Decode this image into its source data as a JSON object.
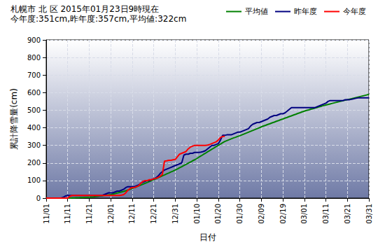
{
  "chart_data": {
    "type": "line",
    "title": "札幌市 北 区 2015年01月23日9時現在",
    "subtitle": "今年度:351cm,昨年度:357cm,平均値:322cm",
    "x_label": "日付",
    "y_label": "累計降雪量(cm)",
    "categories": [
      "11/01",
      null,
      null,
      null,
      null,
      null,
      null,
      null,
      null,
      null,
      "11/11",
      null,
      null,
      null,
      null,
      null,
      null,
      null,
      null,
      null,
      "11/21",
      null,
      null,
      null,
      null,
      null,
      null,
      null,
      null,
      null,
      "12/01",
      null,
      null,
      null,
      null,
      null,
      null,
      null,
      null,
      null,
      "12/11",
      null,
      null,
      null,
      null,
      null,
      null,
      null,
      null,
      null,
      "12/21",
      null,
      null,
      null,
      null,
      null,
      null,
      null,
      null,
      null,
      "12/31",
      null,
      null,
      null,
      null,
      null,
      null,
      null,
      null,
      null,
      "01/10",
      null,
      null,
      null,
      null,
      null,
      null,
      null,
      null,
      null,
      "01/20",
      null,
      null,
      null,
      null,
      null,
      null,
      null,
      null,
      null,
      "01/30",
      null,
      null,
      null,
      null,
      null,
      null,
      null,
      null,
      null,
      "02/09",
      null,
      null,
      null,
      null,
      null,
      null,
      null,
      null,
      null,
      "02/19",
      null,
      null,
      null,
      null,
      null,
      null,
      null,
      null,
      null,
      "03/01",
      null,
      null,
      null,
      null,
      null,
      null,
      null,
      null,
      null,
      "03/11",
      null,
      null,
      null,
      null,
      null,
      null,
      null,
      null,
      null,
      "03/21",
      null,
      null,
      null,
      null,
      null,
      null,
      null,
      null,
      null,
      "03/31"
    ],
    "series": [
      {
        "name": "平均値",
        "color": "#008000",
        "values": [
          0,
          0,
          0,
          0,
          0,
          0,
          0,
          0,
          0,
          0,
          0,
          0,
          1,
          1,
          2,
          2,
          3,
          3,
          4,
          4,
          5,
          6,
          7,
          9,
          10,
          12,
          13,
          15,
          16,
          18,
          20,
          23,
          26,
          29,
          32,
          35,
          38,
          42,
          46,
          50,
          55,
          60,
          64,
          69,
          74,
          79,
          84,
          89,
          94,
          100,
          105,
          110,
          116,
          121,
          127,
          132,
          138,
          143,
          149,
          154,
          160,
          166,
          173,
          179,
          186,
          192,
          199,
          205,
          212,
          218,
          225,
          233,
          240,
          248,
          255,
          263,
          270,
          278,
          285,
          293,
          300,
          307,
          315,
          322,
          327,
          332,
          337,
          342,
          346,
          351,
          355,
          360,
          365,
          370,
          375,
          380,
          385,
          390,
          395,
          400,
          405,
          410,
          414,
          419,
          423,
          428,
          432,
          437,
          441,
          446,
          450,
          455,
          459,
          464,
          468,
          473,
          477,
          482,
          486,
          491,
          495,
          499,
          502,
          506,
          509,
          513,
          516,
          520,
          523,
          527,
          530,
          533,
          536,
          539,
          542,
          545,
          548,
          551,
          554,
          557,
          560,
          563,
          566,
          569,
          572,
          575,
          578,
          581,
          584,
          587,
          590
        ]
      },
      {
        "name": "昨年度",
        "color": "#000080",
        "values": [
          0,
          0,
          0,
          0,
          0,
          0,
          0,
          0,
          5,
          12,
          15,
          15,
          15,
          15,
          15,
          15,
          15,
          15,
          15,
          15,
          15,
          15,
          15,
          15,
          15,
          15,
          15,
          20,
          25,
          30,
          30,
          30,
          35,
          40,
          40,
          45,
          50,
          60,
          65,
          65,
          65,
          65,
          70,
          75,
          85,
          90,
          95,
          100,
          100,
          105,
          110,
          115,
          125,
          140,
          150,
          160,
          165,
          170,
          175,
          180,
          185,
          190,
          195,
          200,
          245,
          250,
          250,
          255,
          255,
          260,
          260,
          260,
          262,
          265,
          270,
          280,
          290,
          300,
          300,
          305,
          310,
          330,
          357,
          357,
          360,
          360,
          360,
          365,
          370,
          375,
          375,
          380,
          385,
          390,
          395,
          410,
          420,
          425,
          430,
          430,
          435,
          440,
          445,
          450,
          460,
          465,
          470,
          470,
          475,
          480,
          480,
          485,
          495,
          505,
          515,
          515,
          515,
          515,
          515,
          515,
          515,
          515,
          515,
          515,
          515,
          515,
          520,
          525,
          530,
          535,
          540,
          550,
          555,
          555,
          555,
          555,
          555,
          555,
          555,
          560,
          560,
          560,
          562,
          565,
          568,
          570,
          570,
          570,
          570,
          570,
          570
        ]
      },
      {
        "name": "今年度",
        "color": "#ff0000",
        "values": [
          0,
          0,
          0,
          0,
          0,
          0,
          0,
          0,
          0,
          0,
          0,
          10,
          15,
          15,
          15,
          15,
          15,
          15,
          15,
          15,
          15,
          15,
          15,
          15,
          15,
          15,
          15,
          15,
          15,
          15,
          15,
          15,
          15,
          15,
          15,
          17,
          20,
          30,
          45,
          55,
          60,
          60,
          65,
          70,
          85,
          95,
          100,
          100,
          105,
          105,
          110,
          112,
          118,
          125,
          135,
          210,
          212,
          215,
          215,
          218,
          220,
          235,
          250,
          255,
          260,
          265,
          280,
          290,
          295,
          300,
          300,
          300,
          300,
          300,
          300,
          302,
          305,
          310,
          315,
          320,
          330,
          345,
          350,
          351,
          null,
          null,
          null,
          null,
          null,
          null,
          null,
          null,
          null,
          null,
          null,
          null,
          null,
          null,
          null,
          null,
          null,
          null,
          null,
          null,
          null,
          null,
          null,
          null,
          null,
          null,
          null,
          null,
          null,
          null,
          null,
          null,
          null,
          null,
          null,
          null,
          null,
          null,
          null,
          null,
          null,
          null,
          null,
          null,
          null,
          null,
          null,
          null,
          null,
          null,
          null,
          null,
          null,
          null,
          null,
          null,
          null,
          null,
          null,
          null,
          null,
          null,
          null,
          null,
          null,
          null,
          null
        ]
      }
    ],
    "ylim": [
      0,
      900
    ],
    "yticks": [
      0,
      100,
      200,
      300,
      400,
      500,
      600,
      700,
      800,
      900
    ],
    "grid": true,
    "legend": "top-right"
  }
}
